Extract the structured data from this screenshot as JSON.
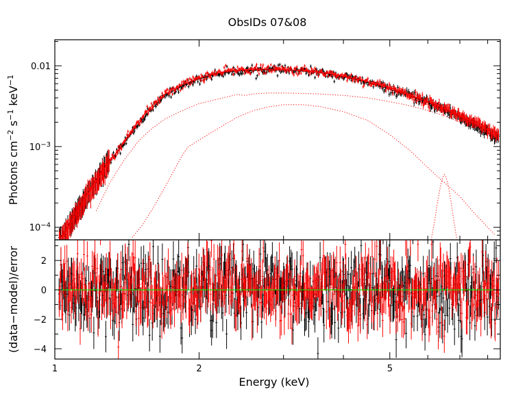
{
  "chart_data": [
    {
      "type": "scatter",
      "panel": "spectrum",
      "title": "ObsIDs 07&08",
      "xlabel": "Energy (keV)",
      "ylabel_parts": {
        "base": "Photons cm",
        "exp1": "−2",
        "mid": " s",
        "exp2": "−1",
        "tail": " keV",
        "exp3": "−1"
      },
      "xscale": "log",
      "yscale": "log",
      "xlim": [
        1.0,
        8.5
      ],
      "ylim": [
        7e-05,
        0.021
      ],
      "x_ticks": [
        {
          "value": 1,
          "label": "1"
        },
        {
          "value": 2,
          "label": "2"
        },
        {
          "value": 5,
          "label": "5"
        }
      ],
      "y_ticks": [
        {
          "value": 0.01,
          "label": "0.01"
        },
        {
          "value": 0.001,
          "label": "10",
          "sup": "−3"
        },
        {
          "value": 0.0001,
          "label": "10",
          "sup": "−4"
        }
      ],
      "series": [
        {
          "name": "Data 1 (black)",
          "color": "#000000",
          "x": [
            1.04,
            1.08,
            1.13,
            1.2,
            1.28,
            1.37,
            1.47,
            1.58,
            1.7,
            1.84,
            1.99,
            2.15,
            2.33,
            2.52,
            2.73,
            2.95,
            3.2,
            3.47,
            3.76,
            4.07,
            4.41,
            4.78,
            5.18,
            5.61,
            6.08,
            6.59,
            7.14,
            7.73,
            8.3
          ],
          "y": [
            8e-05,
            0.00012,
            0.00019,
            0.00034,
            0.0006,
            0.00095,
            0.0017,
            0.0028,
            0.0043,
            0.0056,
            0.0068,
            0.0078,
            0.0085,
            0.0087,
            0.0089,
            0.0089,
            0.0087,
            0.0084,
            0.0079,
            0.0072,
            0.0064,
            0.0056,
            0.0048,
            0.0041,
            0.0034,
            0.0028,
            0.0022,
            0.0017,
            0.0013
          ]
        },
        {
          "name": "Data 2 (red)",
          "color": "#ff0000",
          "x": [
            1.04,
            1.08,
            1.13,
            1.2,
            1.28,
            1.37,
            1.47,
            1.58,
            1.7,
            1.84,
            1.99,
            2.15,
            2.33,
            2.52,
            2.73,
            2.95,
            3.2,
            3.47,
            3.76,
            4.07,
            4.41,
            4.78,
            5.18,
            5.61,
            6.08,
            6.59,
            7.14,
            7.73,
            8.3
          ],
          "y": [
            7.5e-05,
            0.000115,
            0.00018,
            0.00032,
            0.00058,
            0.00098,
            0.0018,
            0.003,
            0.0045,
            0.0058,
            0.007,
            0.008,
            0.0087,
            0.009,
            0.0091,
            0.009,
            0.0088,
            0.0085,
            0.008,
            0.0073,
            0.0066,
            0.0058,
            0.005,
            0.0042,
            0.0035,
            0.0029,
            0.0023,
            0.0018,
            0.0014
          ]
        },
        {
          "name": "Model component 1 (dotted)",
          "color": "#ff0000",
          "style": "dotted",
          "x": [
            1.22,
            1.3,
            1.4,
            1.5,
            1.6,
            1.7,
            1.8,
            1.9,
            2.0,
            2.2,
            2.4,
            2.5,
            2.6,
            2.8,
            3.0,
            3.5,
            4.0,
            4.5,
            5.0,
            5.5,
            6.0,
            6.5,
            7.0,
            7.5,
            8.0,
            8.5
          ],
          "y": [
            0.00016,
            0.00035,
            0.0007,
            0.0012,
            0.0017,
            0.0022,
            0.0026,
            0.003,
            0.0034,
            0.0039,
            0.0044,
            0.0043,
            0.0045,
            0.0046,
            0.0046,
            0.0045,
            0.0043,
            0.004,
            0.0036,
            0.0032,
            0.0028,
            0.0024,
            0.002,
            0.0017,
            0.0014,
            0.0012
          ]
        },
        {
          "name": "Model component 2 (dotted)",
          "color": "#ff0000",
          "style": "dotted",
          "x": [
            1.45,
            1.52,
            1.6,
            1.7,
            1.8,
            1.85,
            1.9,
            2.0,
            2.2,
            2.4,
            2.6,
            2.8,
            3.0,
            3.3,
            3.6,
            4.0,
            4.5,
            5.0,
            5.5,
            6.0,
            6.3,
            6.6,
            7.0,
            7.5,
            8.0,
            8.3
          ],
          "y": [
            7.5e-05,
            0.000105,
            0.00017,
            0.00032,
            0.0006,
            0.0008,
            0.001,
            0.0012,
            0.0017,
            0.0023,
            0.0028,
            0.0031,
            0.0033,
            0.0033,
            0.0031,
            0.0027,
            0.0021,
            0.0014,
            0.0009,
            0.00055,
            0.00042,
            0.00033,
            0.00024,
            0.00015,
            0.0001,
            8e-05
          ]
        },
        {
          "name": "Model component 3 (line, dotted)",
          "color": "#ff0000",
          "style": "dotted",
          "x": [
            6.1,
            6.2,
            6.3,
            6.4,
            6.45,
            6.5,
            6.55,
            6.6,
            6.7,
            6.8,
            6.9
          ],
          "y": [
            7e-05,
            0.00012,
            0.00022,
            0.00036,
            0.00042,
            0.00045,
            0.00042,
            0.00036,
            0.00022,
            0.00012,
            7e-05
          ]
        }
      ]
    },
    {
      "type": "scatter",
      "panel": "residuals",
      "xlabel": "Energy (keV)",
      "ylabel": "(data−model)/error",
      "xscale": "log",
      "xlim": [
        1.0,
        8.5
      ],
      "ylim": [
        -4.7,
        3.4
      ],
      "x_ticks": [
        {
          "value": 1,
          "label": "1"
        },
        {
          "value": 2,
          "label": "2"
        },
        {
          "value": 5,
          "label": "5"
        }
      ],
      "y_ticks": [
        {
          "value": 2,
          "label": "2"
        },
        {
          "value": 0,
          "label": "0"
        },
        {
          "value": -2,
          "label": "−2"
        },
        {
          "value": -4,
          "label": "−4"
        }
      ],
      "zero_line_color": "#00ff00",
      "series": [
        {
          "name": "Residuals 1 (black)",
          "color": "#000000",
          "scatter_sd": 1.3
        },
        {
          "name": "Residuals 2 (red)",
          "color": "#ff0000",
          "scatter_sd": 1.3
        }
      ]
    }
  ]
}
